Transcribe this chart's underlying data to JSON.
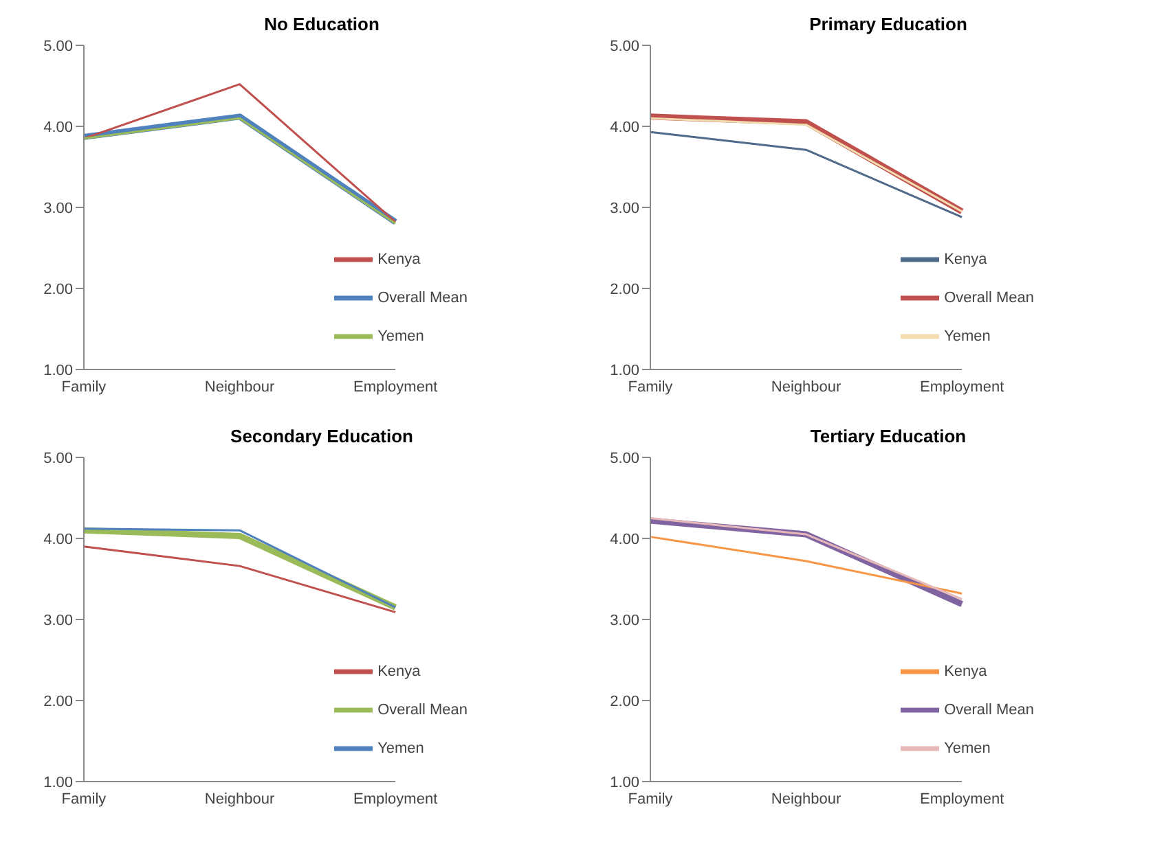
{
  "chart_data": [
    {
      "type": "line",
      "title": "No Education",
      "categories": [
        "Family",
        "Neighbour",
        "Employment"
      ],
      "ylim": [
        1,
        5
      ],
      "yticks": [
        {
          "value": 1,
          "label": "1.00"
        },
        {
          "value": 2,
          "label": "2.00"
        },
        {
          "value": 3,
          "label": "3.00"
        },
        {
          "value": 4,
          "label": "4.00"
        },
        {
          "value": 5,
          "label": "5.00"
        }
      ],
      "legend": "bottom right",
      "series": [
        {
          "name": "Overall Mean",
          "color": "#4f81bd",
          "values": [
            3.87,
            4.12,
            2.82
          ]
        },
        {
          "name": "Kenya",
          "color": "#c0504d",
          "values": [
            3.85,
            4.52,
            2.82
          ]
        },
        {
          "name": "Yemen",
          "color": "#9bbb59",
          "values": [
            3.85,
            4.1,
            2.8
          ]
        }
      ]
    },
    {
      "type": "line",
      "title": "Primary Education",
      "categories": [
        "Family",
        "Neighbour",
        "Employment"
      ],
      "ylim": [
        1,
        5
      ],
      "yticks": [
        {
          "value": 1,
          "label": "1.00"
        },
        {
          "value": 2,
          "label": "2.00"
        },
        {
          "value": 3,
          "label": "3.00"
        },
        {
          "value": 4,
          "label": "4.00"
        },
        {
          "value": 5,
          "label": "5.00"
        }
      ],
      "legend": "bottom right",
      "series": [
        {
          "name": "Overall Mean",
          "color": "#c0504d",
          "values": [
            4.12,
            4.05,
            2.95
          ]
        },
        {
          "name": "Kenya",
          "color": "#4f6a8a",
          "values": [
            3.93,
            3.71,
            2.88
          ]
        },
        {
          "name": "Yemen",
          "color": "#f2dcb0",
          "values": [
            4.1,
            4.02,
            2.95
          ]
        }
      ]
    },
    {
      "type": "line",
      "title": "Secondary Education",
      "categories": [
        "Family",
        "Neighbour",
        "Employment"
      ],
      "ylim": [
        1,
        5
      ],
      "yticks": [
        {
          "value": 1,
          "label": "1.00"
        },
        {
          "value": 2,
          "label": "2.00"
        },
        {
          "value": 3,
          "label": "3.00"
        },
        {
          "value": 4,
          "label": "4.00"
        },
        {
          "value": 5,
          "label": "5.00"
        }
      ],
      "legend": "bottom right",
      "series": [
        {
          "name": "Overall Mean",
          "color": "#9bbb59",
          "values": [
            4.1,
            4.03,
            3.15
          ]
        },
        {
          "name": "Kenya",
          "color": "#c0504d",
          "values": [
            3.9,
            3.66,
            3.09
          ]
        },
        {
          "name": "Yemen",
          "color": "#4f81bd",
          "values": [
            4.12,
            4.1,
            3.15
          ]
        }
      ]
    },
    {
      "type": "line",
      "title": "Tertiary Education",
      "categories": [
        "Family",
        "Neighbour",
        "Employment"
      ],
      "ylim": [
        1,
        5
      ],
      "yticks": [
        {
          "value": 1,
          "label": "1.00"
        },
        {
          "value": 2,
          "label": "2.00"
        },
        {
          "value": 3,
          "label": "3.00"
        },
        {
          "value": 4,
          "label": "4.00"
        },
        {
          "value": 5,
          "label": "5.00"
        }
      ],
      "legend": "bottom right",
      "series": [
        {
          "name": "Overall Mean",
          "color": "#8064a2",
          "values": [
            4.22,
            4.05,
            3.19
          ]
        },
        {
          "name": "Kenya",
          "color": "#f79646",
          "values": [
            4.02,
            3.72,
            3.32
          ]
        },
        {
          "name": "Yemen",
          "color": "#e6b9b8",
          "values": [
            4.25,
            4.05,
            3.25
          ]
        }
      ]
    }
  ]
}
